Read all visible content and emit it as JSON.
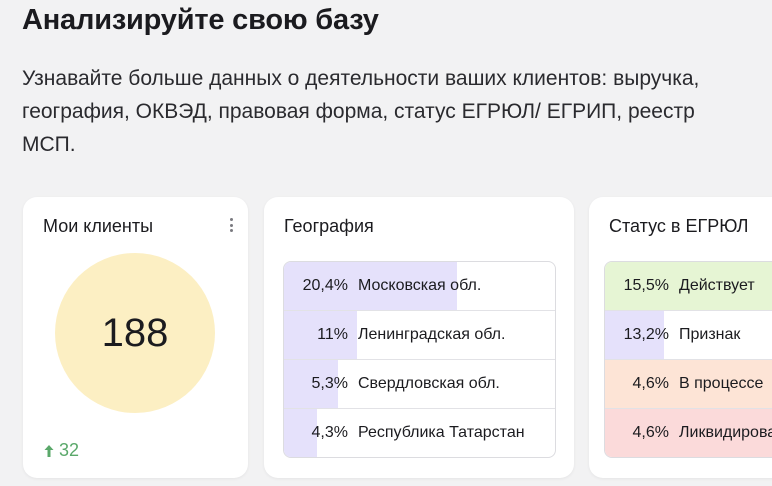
{
  "page": {
    "title": "Анализируйте свою базу",
    "description": "Узнавайте больше данных о деятельности ваших клиентов: выручка, география, ОКВЭД, правовая форма, статус ЕГРЮЛ/ ЕГРИП, реестр МСП."
  },
  "clients": {
    "title": "Мои клиенты",
    "value": "188",
    "delta": "32",
    "circle_color": "#fcefc3",
    "delta_color": "#5aa86a"
  },
  "geography": {
    "title": "География",
    "bar_color": "#e5e1fb",
    "rows": [
      {
        "pct": "20,4%",
        "label": "Московская обл.",
        "fill": 0.64
      },
      {
        "pct": "11%",
        "label": "Ленинградская обл.",
        "fill": 0.27
      },
      {
        "pct": "5,3%",
        "label": "Свердловская обл.",
        "fill": 0.2
      },
      {
        "pct": "4,3%",
        "label": "Республика Татарстан",
        "fill": 0.12
      }
    ]
  },
  "status": {
    "title": "Статус в ЕГРЮЛ",
    "rows": [
      {
        "pct": "15,5%",
        "label": "Действует",
        "color": "#e6f5d4",
        "fill": 1.0
      },
      {
        "pct": "13,2%",
        "label": "Признак",
        "color": "#e5e1fb",
        "fill": 0.27
      },
      {
        "pct": "4,6%",
        "label": "В процессе",
        "color": "#fde4d6",
        "fill": 1.0
      },
      {
        "pct": "4,6%",
        "label": "Ликвидирована",
        "color": "#fbdada",
        "fill": 1.0
      }
    ]
  }
}
